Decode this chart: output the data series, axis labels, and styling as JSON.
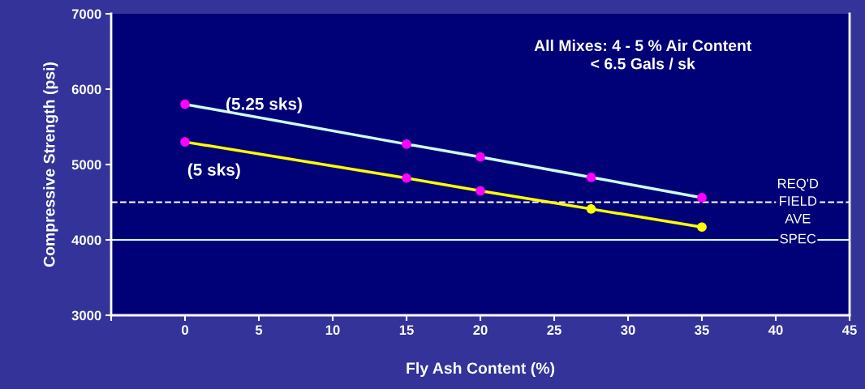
{
  "chart_data": {
    "type": "line",
    "xlabel": "Fly Ash Content (%)",
    "ylabel": "Compressive Strength (psi)",
    "x": [
      0,
      15,
      20,
      27.5,
      35
    ],
    "series": [
      {
        "name": "(5.25 sks)",
        "color": "#ccffee",
        "colors": [
          "#ff00ff",
          "#ff00ff",
          "#ff00ff",
          "#ff00ff",
          "#ff00ff"
        ],
        "values": [
          5800,
          5270,
          5100,
          4830,
          4560
        ]
      },
      {
        "name": "(5 sks)",
        "color": "#ffff00",
        "colors": [
          "#ff00ff",
          "#ff00ff",
          "#ff00ff",
          "#ffff00",
          "#ffff00"
        ],
        "values": [
          5300,
          4820,
          4650,
          4410,
          4170
        ]
      }
    ],
    "xlim": [
      -5,
      45
    ],
    "xticks": [
      {
        "value": -5,
        "label": null
      },
      0,
      5,
      10,
      15,
      20,
      25,
      30,
      35,
      40,
      45
    ],
    "ylim": [
      3000,
      7000
    ],
    "yticks": [
      3000,
      4000,
      5000,
      6000,
      7000
    ],
    "ref_lines": [
      {
        "axis": "y",
        "value": 4500,
        "label": "REQ'D\nFIELD\nAVE",
        "color": "#ffffff",
        "line_style": "dashed"
      },
      {
        "axis": "y",
        "value": 4000,
        "label": "SPEC",
        "color": "#ccffff",
        "line_style": "solid"
      }
    ],
    "annotations": [
      "All Mixes: 4 - 5 % Air Content\n< 6.5 Gals / sk"
    ],
    "marker": "circle",
    "line_style": "solid",
    "grid": false,
    "legend": false
  }
}
